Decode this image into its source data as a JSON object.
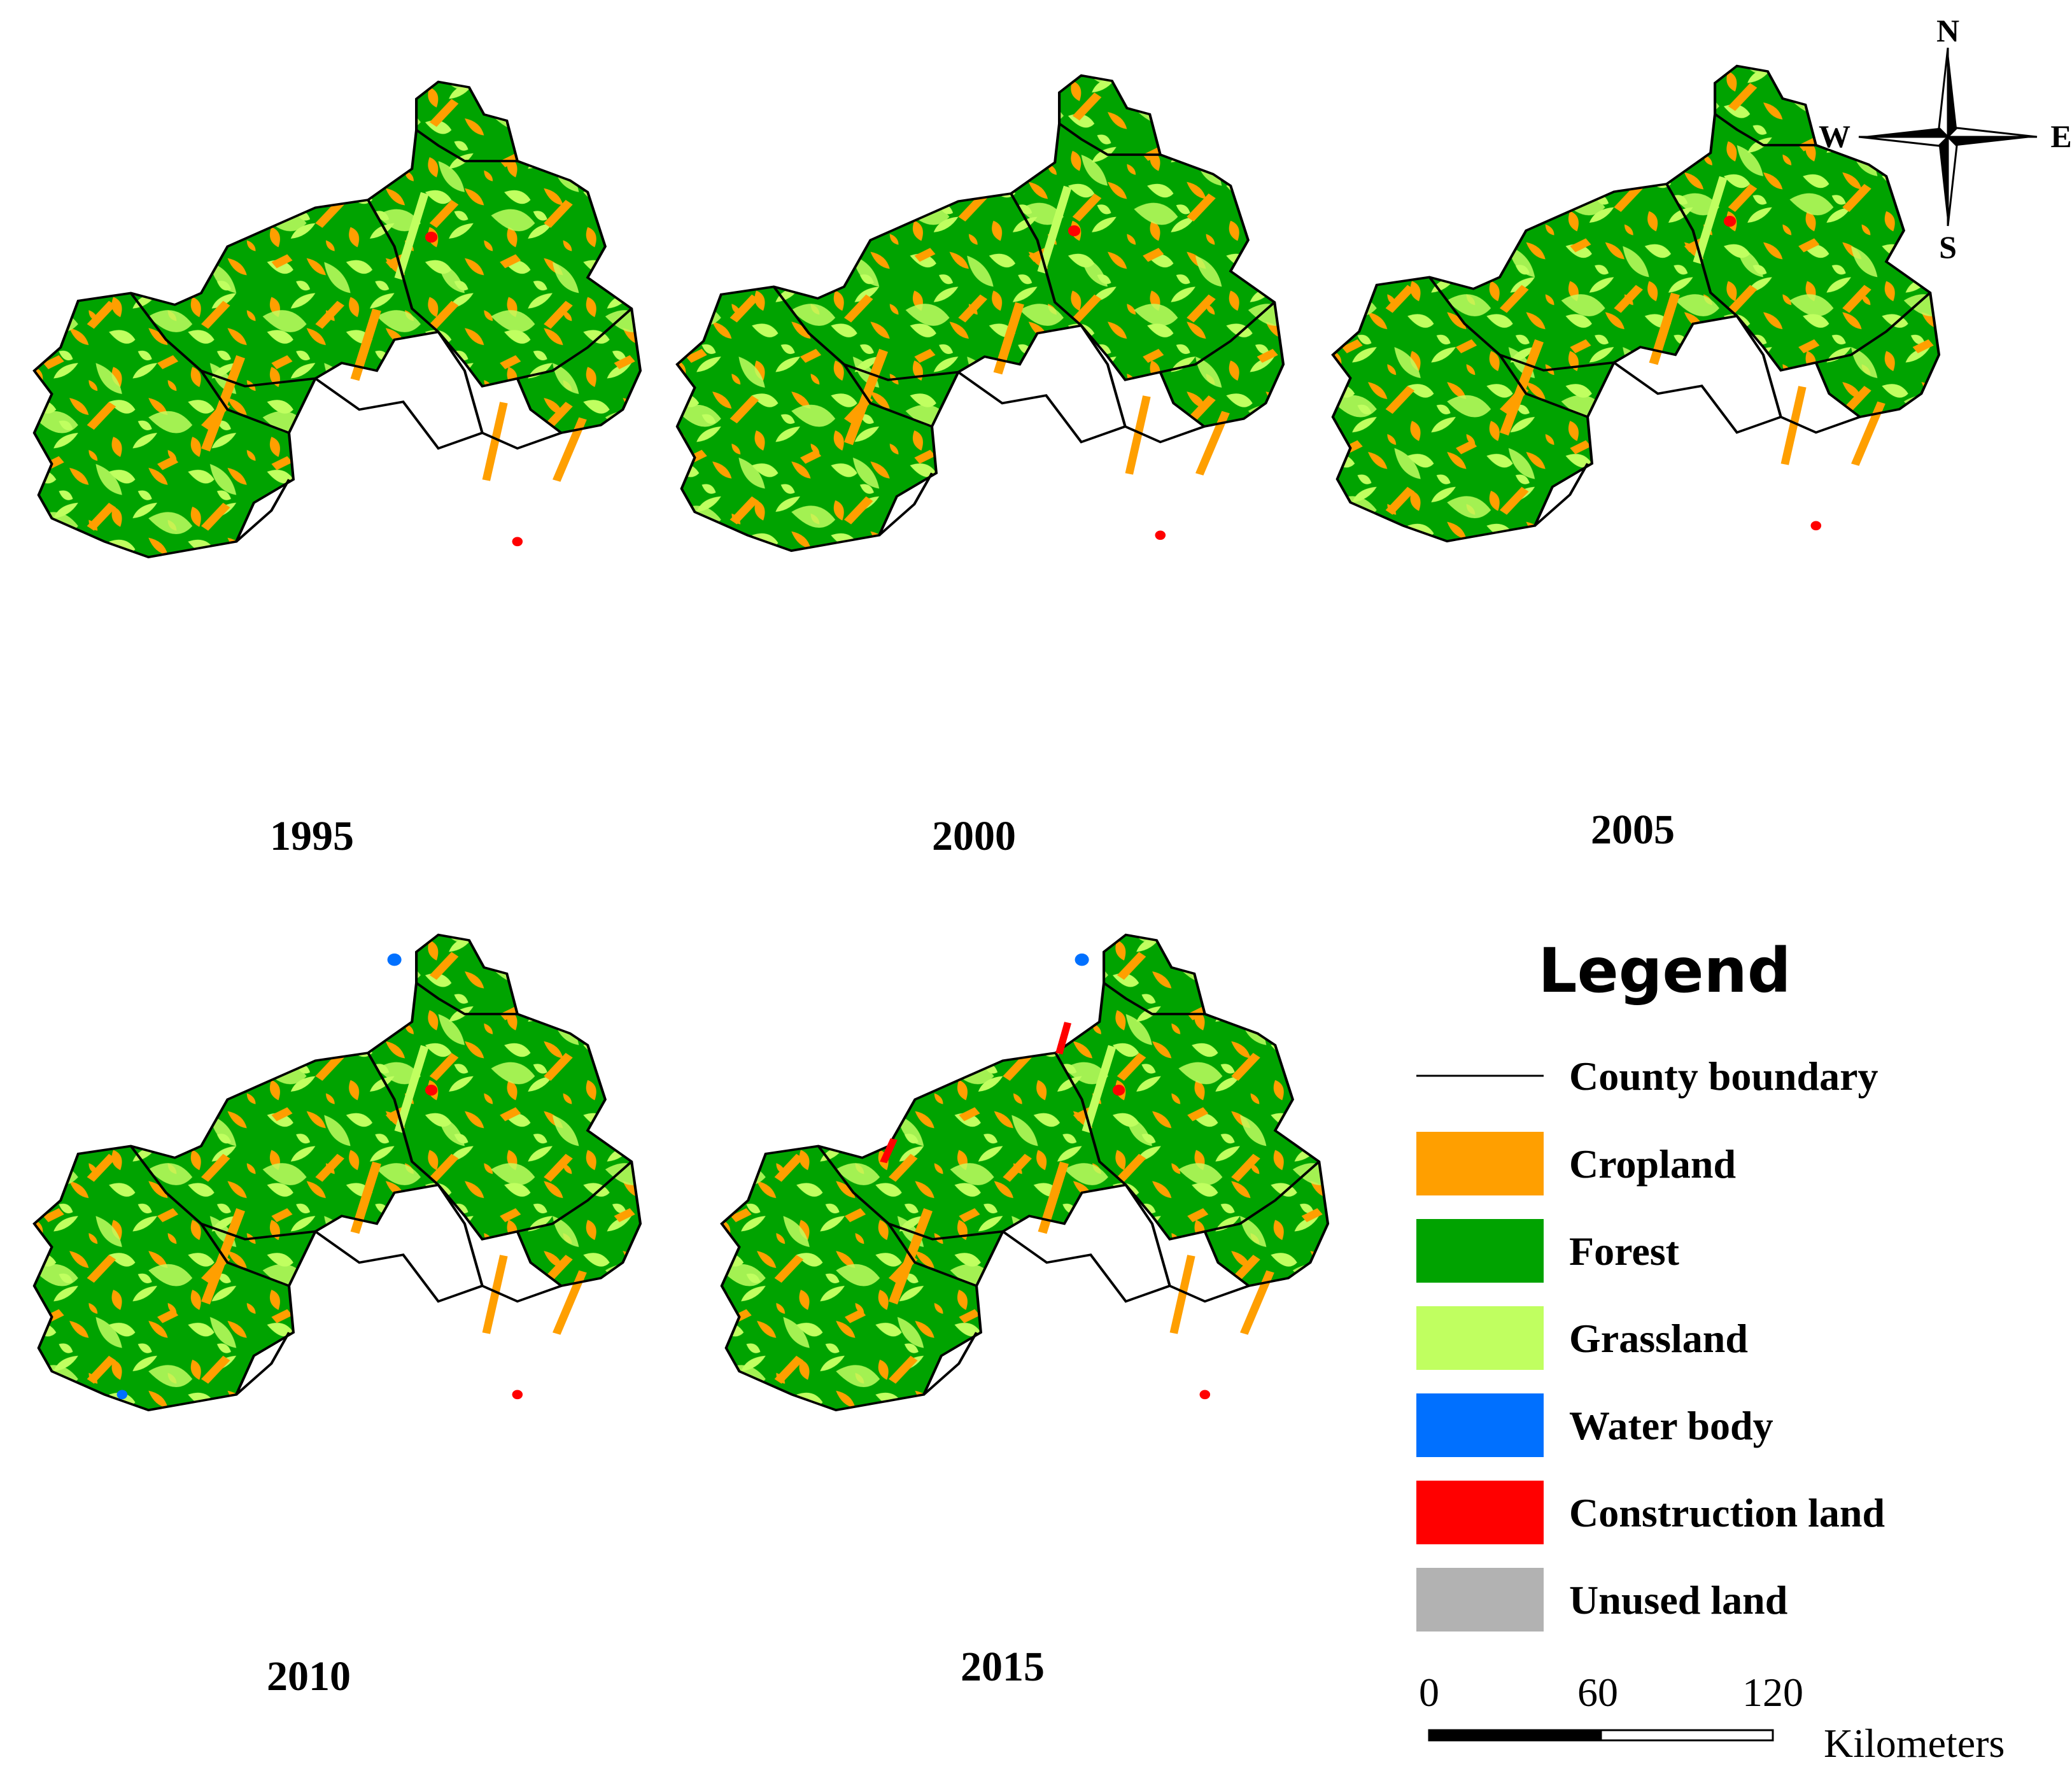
{
  "maps": [
    {
      "year": "1995"
    },
    {
      "year": "2000"
    },
    {
      "year": "2005"
    },
    {
      "year": "2010"
    },
    {
      "year": "2015"
    }
  ],
  "compass": {
    "n": "N",
    "s": "S",
    "e": "E",
    "w": "W"
  },
  "legend": {
    "title": "Legend",
    "boundary_label": "County boundary",
    "classes": [
      {
        "label": "Cropland",
        "color": "#FF9F00"
      },
      {
        "label": "Forest",
        "color": "#00A300"
      },
      {
        "label": "Grassland",
        "color": "#C0FF60"
      },
      {
        "label": "Water body",
        "color": "#0070FF"
      },
      {
        "label": "Construction land",
        "color": "#FF0000"
      },
      {
        "label": "Unused land",
        "color": "#B2B2B2"
      }
    ]
  },
  "scale_bar": {
    "ticks": [
      "0",
      "60",
      "120"
    ],
    "unit": "Kilometers"
  }
}
